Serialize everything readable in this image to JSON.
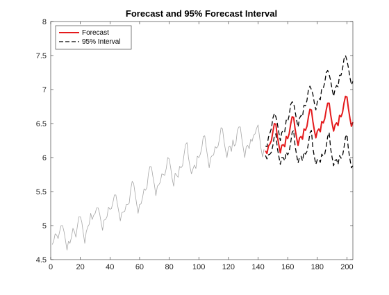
{
  "chart_data": {
    "type": "line",
    "title": "Forecast and 95% Forecast Interval",
    "xlabel": "",
    "ylabel": "",
    "xlim": [
      0,
      204
    ],
    "ylim": [
      4.5,
      8
    ],
    "xticks": [
      0,
      20,
      40,
      60,
      80,
      100,
      120,
      140,
      160,
      180,
      200
    ],
    "yticks": [
      4.5,
      5,
      5.5,
      6,
      6.5,
      7,
      7.5,
      8
    ],
    "xtick_labels": [
      "0",
      "20",
      "40",
      "60",
      "80",
      "100",
      "120",
      "140",
      "160",
      "180",
      "200"
    ],
    "ytick_labels": [
      "4.5",
      "5",
      "5.5",
      "6",
      "6.5",
      "7",
      "7.5",
      "8"
    ],
    "grid": false,
    "legend_position": "top-left",
    "legend": [
      {
        "label": "Forecast",
        "color": "#e41a1c",
        "style": "solid"
      },
      {
        "label": "95% Interval",
        "color": "#000000",
        "style": "dashed"
      }
    ],
    "series": [
      {
        "role": "observed",
        "color": "#a6a6a6",
        "x": [
          1,
          2,
          3,
          4,
          5,
          6,
          7,
          8,
          9,
          10,
          11,
          12,
          13,
          14,
          15,
          16,
          17,
          18,
          19,
          20,
          21,
          22,
          23,
          24,
          25,
          26,
          27,
          28,
          29,
          30,
          31,
          32,
          33,
          34,
          35,
          36,
          37,
          38,
          39,
          40,
          41,
          42,
          43,
          44,
          45,
          46,
          47,
          48,
          49,
          50,
          51,
          52,
          53,
          54,
          55,
          56,
          57,
          58,
          59,
          60,
          61,
          62,
          63,
          64,
          65,
          66,
          67,
          68,
          69,
          70,
          71,
          72,
          73,
          74,
          75,
          76,
          77,
          78,
          79,
          80,
          81,
          82,
          83,
          84,
          85,
          86,
          87,
          88,
          89,
          90,
          91,
          92,
          93,
          94,
          95,
          96,
          97,
          98,
          99,
          100,
          101,
          102,
          103,
          104,
          105,
          106,
          107,
          108,
          109,
          110,
          111,
          112,
          113,
          114,
          115,
          116,
          117,
          118,
          119,
          120,
          121,
          122,
          123,
          124,
          125,
          126,
          127,
          128,
          129,
          130,
          131,
          132,
          133,
          134,
          135,
          136,
          137,
          138,
          139,
          140,
          141,
          142,
          143,
          144
        ],
        "values": [
          4.72,
          4.77,
          4.88,
          4.86,
          4.81,
          4.91,
          5.0,
          5.0,
          4.91,
          4.78,
          4.64,
          4.77,
          4.74,
          4.83,
          4.96,
          4.91,
          4.83,
          4.99,
          5.13,
          5.13,
          5.05,
          4.89,
          4.74,
          4.91,
          4.98,
          5.02,
          5.18,
          5.09,
          5.15,
          5.18,
          5.26,
          5.26,
          5.18,
          5.05,
          4.93,
          5.08,
          5.09,
          5.13,
          5.27,
          5.24,
          5.25,
          5.34,
          5.45,
          5.45,
          5.32,
          5.2,
          5.07,
          5.19,
          5.2,
          5.21,
          5.31,
          5.31,
          5.33,
          5.53,
          5.65,
          5.62,
          5.47,
          5.32,
          5.18,
          5.31,
          5.32,
          5.41,
          5.54,
          5.52,
          5.56,
          5.77,
          5.87,
          5.86,
          5.72,
          5.6,
          5.44,
          5.58,
          5.6,
          5.64,
          5.76,
          5.75,
          5.74,
          5.84,
          6.0,
          5.98,
          5.85,
          5.69,
          5.58,
          5.77,
          5.74,
          5.71,
          5.87,
          5.85,
          5.88,
          6.04,
          6.19,
          6.22,
          6.0,
          5.87,
          5.76,
          5.83,
          5.89,
          5.84,
          6.02,
          6.0,
          6.05,
          6.14,
          6.31,
          6.32,
          6.15,
          6.0,
          5.85,
          6.0,
          6.03,
          6.04,
          6.16,
          6.14,
          6.17,
          6.28,
          6.44,
          6.42,
          6.24,
          6.11,
          6.0,
          6.15,
          6.17,
          6.09,
          6.26,
          6.17,
          6.2,
          6.4,
          6.45,
          6.45,
          6.28,
          6.14,
          6.0,
          6.16,
          6.18,
          6.13,
          6.27,
          6.24,
          6.33,
          6.35,
          6.43,
          6.48,
          6.3,
          6.13,
          6.01,
          6.12
        ]
      },
      {
        "name": "Forecast",
        "color": "#e41a1c",
        "x": [
          145,
          146,
          147,
          148,
          149,
          150,
          151,
          152,
          153,
          154,
          155,
          156,
          157,
          158,
          159,
          160,
          161,
          162,
          163,
          164,
          165,
          166,
          167,
          168,
          169,
          170,
          171,
          172,
          173,
          174,
          175,
          176,
          177,
          178,
          179,
          180,
          181,
          182,
          183,
          184,
          185,
          186,
          187,
          188,
          189,
          190,
          191,
          192,
          193,
          194,
          195,
          196,
          197,
          198,
          199,
          200,
          201,
          202,
          203,
          204
        ],
        "values": [
          6.1,
          6.06,
          6.17,
          6.2,
          6.25,
          6.38,
          6.5,
          6.49,
          6.31,
          6.19,
          6.07,
          6.18,
          6.19,
          6.16,
          6.31,
          6.28,
          6.35,
          6.49,
          6.6,
          6.59,
          6.42,
          6.29,
          6.18,
          6.29,
          6.31,
          6.27,
          6.42,
          6.4,
          6.46,
          6.6,
          6.71,
          6.7,
          6.53,
          6.4,
          6.29,
          6.39,
          6.42,
          6.38,
          6.53,
          6.51,
          6.57,
          6.7,
          6.8,
          6.8,
          6.63,
          6.5,
          6.39,
          6.48,
          6.51,
          6.47,
          6.62,
          6.6,
          6.66,
          6.8,
          6.9,
          6.89,
          6.72,
          6.58,
          6.46,
          6.52
        ]
      },
      {
        "name": "95% Interval",
        "role": "upper",
        "color": "#000000",
        "x": [
          145,
          146,
          147,
          148,
          149,
          150,
          151,
          152,
          153,
          154,
          155,
          156,
          157,
          158,
          159,
          160,
          161,
          162,
          163,
          164,
          165,
          166,
          167,
          168,
          169,
          170,
          171,
          172,
          173,
          174,
          175,
          176,
          177,
          178,
          179,
          180,
          181,
          182,
          183,
          184,
          185,
          186,
          187,
          188,
          189,
          190,
          191,
          192,
          193,
          194,
          195,
          196,
          197,
          198,
          199,
          200,
          201,
          202,
          203,
          204
        ],
        "values": [
          6.17,
          6.16,
          6.3,
          6.36,
          6.43,
          6.58,
          6.65,
          6.6,
          6.5,
          6.37,
          6.25,
          6.37,
          6.4,
          6.38,
          6.55,
          6.53,
          6.62,
          6.78,
          6.82,
          6.8,
          6.68,
          6.55,
          6.45,
          6.58,
          6.62,
          6.6,
          6.77,
          6.76,
          6.84,
          7.0,
          7.05,
          7.0,
          6.93,
          6.8,
          6.7,
          6.82,
          6.87,
          6.85,
          7.02,
          7.02,
          7.1,
          7.25,
          7.28,
          7.22,
          7.13,
          7.0,
          6.9,
          7.01,
          7.06,
          7.04,
          7.21,
          7.21,
          7.3,
          7.45,
          7.5,
          7.43,
          7.32,
          7.18,
          7.07,
          7.12
        ]
      },
      {
        "name": "95% Interval",
        "role": "lower",
        "color": "#000000",
        "x": [
          145,
          146,
          147,
          148,
          149,
          150,
          151,
          152,
          153,
          154,
          155,
          156,
          157,
          158,
          159,
          160,
          161,
          162,
          163,
          164,
          165,
          166,
          167,
          168,
          169,
          170,
          171,
          172,
          173,
          174,
          175,
          176,
          177,
          178,
          179,
          180,
          181,
          182,
          183,
          184,
          185,
          186,
          187,
          188,
          189,
          190,
          191,
          192,
          193,
          194,
          195,
          196,
          197,
          198,
          199,
          200,
          201,
          202,
          203,
          204
        ],
        "values": [
          6.03,
          5.98,
          6.04,
          6.05,
          6.08,
          6.18,
          6.32,
          6.35,
          6.14,
          6.02,
          5.9,
          6.0,
          6.0,
          5.95,
          6.08,
          6.04,
          6.09,
          6.22,
          6.37,
          6.4,
          6.17,
          6.04,
          5.92,
          6.01,
          6.02,
          5.95,
          6.08,
          6.05,
          6.09,
          6.21,
          6.36,
          6.4,
          6.14,
          6.01,
          5.9,
          5.97,
          5.98,
          5.93,
          6.05,
          6.02,
          6.05,
          6.16,
          6.31,
          6.37,
          6.13,
          6.0,
          5.88,
          5.96,
          5.97,
          5.9,
          6.03,
          5.99,
          6.02,
          6.15,
          6.3,
          6.34,
          6.12,
          5.98,
          5.85,
          5.88
        ]
      }
    ]
  }
}
